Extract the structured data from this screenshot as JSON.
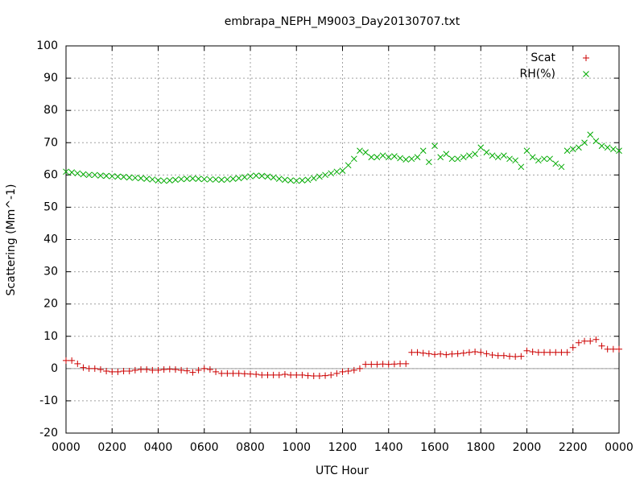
{
  "chart_data": {
    "type": "scatter",
    "title": "embrapa_NEPH_M9003_Day20130707.txt",
    "x_label": "UTC Hour",
    "y_label": "Scattering (Mm^-1)",
    "xlim": [
      0,
      24
    ],
    "ylim": [
      -20,
      100
    ],
    "xticks": [
      {
        "value": 0,
        "label": "0000"
      },
      {
        "value": 2,
        "label": "0200"
      },
      {
        "value": 4,
        "label": "0400"
      },
      {
        "value": 6,
        "label": "0600"
      },
      {
        "value": 8,
        "label": "0800"
      },
      {
        "value": 10,
        "label": "1000"
      },
      {
        "value": 12,
        "label": "1200"
      },
      {
        "value": 14,
        "label": "1400"
      },
      {
        "value": 16,
        "label": "1600"
      },
      {
        "value": 18,
        "label": "1800"
      },
      {
        "value": 20,
        "label": "2000"
      },
      {
        "value": 22,
        "label": "2200"
      },
      {
        "value": 24,
        "label": "0000"
      }
    ],
    "yticks": [
      -20,
      -10,
      0,
      10,
      20,
      30,
      40,
      50,
      60,
      70,
      80,
      90,
      100
    ],
    "grid": true,
    "legend": "top-right",
    "x": [
      0,
      0.25,
      0.5,
      0.75,
      1,
      1.25,
      1.5,
      1.75,
      2,
      2.25,
      2.5,
      2.75,
      3,
      3.25,
      3.5,
      3.75,
      4,
      4.25,
      4.5,
      4.75,
      5,
      5.25,
      5.5,
      5.75,
      6,
      6.25,
      6.5,
      6.75,
      7,
      7.25,
      7.5,
      7.75,
      8,
      8.25,
      8.5,
      8.75,
      9,
      9.25,
      9.5,
      9.75,
      10,
      10.25,
      10.5,
      10.75,
      11,
      11.25,
      11.5,
      11.75,
      12,
      12.25,
      12.5,
      12.75,
      13,
      13.25,
      13.5,
      13.75,
      14,
      14.25,
      14.5,
      14.75,
      15,
      15.25,
      15.5,
      15.75,
      16,
      16.25,
      16.5,
      16.75,
      17,
      17.25,
      17.5,
      17.75,
      18,
      18.25,
      18.5,
      18.75,
      19,
      19.25,
      19.5,
      19.75,
      20,
      20.25,
      20.5,
      20.75,
      21,
      21.25,
      21.5,
      21.75,
      22,
      22.25,
      22.5,
      22.75,
      23,
      23.25,
      23.5,
      23.75,
      24
    ],
    "series": [
      {
        "name": "Scat",
        "color": "#cc0000",
        "marker": "plus",
        "values": [
          2.5,
          2.5,
          1.5,
          0.3,
          0,
          0,
          -0.3,
          -0.8,
          -1,
          -1,
          -0.8,
          -0.8,
          -0.5,
          -0.3,
          -0.3,
          -0.5,
          -0.5,
          -0.3,
          -0.2,
          -0.3,
          -0.5,
          -0.7,
          -1.2,
          -0.5,
          0,
          -0.3,
          -1,
          -1.5,
          -1.5,
          -1.5,
          -1.5,
          -1.6,
          -1.7,
          -1.8,
          -2,
          -2,
          -2,
          -2,
          -1.8,
          -2,
          -2,
          -2,
          -2.2,
          -2.3,
          -2.3,
          -2.2,
          -2,
          -1.5,
          -1,
          -0.8,
          -0.5,
          0,
          1.3,
          1.3,
          1.3,
          1.4,
          1.3,
          1.4,
          1.5,
          1.5,
          5,
          5,
          4.8,
          4.6,
          4.4,
          4.5,
          4.3,
          4.5,
          4.6,
          4.8,
          5,
          5.2,
          5,
          4.6,
          4.2,
          4,
          4,
          3.8,
          3.7,
          3.8,
          5.5,
          5.2,
          5,
          5,
          5,
          5,
          5,
          5,
          6.5,
          8,
          8.5,
          8.5,
          9,
          7,
          6,
          6,
          6
        ]
      },
      {
        "name": "RH(%)",
        "color": "#00aa00",
        "marker": "cross",
        "values": [
          61,
          60.8,
          60.5,
          60.2,
          60,
          60,
          59.8,
          59.7,
          59.6,
          59.5,
          59.4,
          59.2,
          59.1,
          59,
          58.8,
          58.6,
          58.3,
          58.2,
          58.3,
          58.5,
          58.7,
          58.8,
          58.9,
          58.8,
          58.7,
          58.6,
          58.6,
          58.5,
          58.6,
          58.8,
          59,
          59.3,
          59.6,
          59.8,
          59.7,
          59.5,
          59.2,
          58.8,
          58.5,
          58.3,
          58.2,
          58.3,
          58.5,
          59,
          59.5,
          60,
          60.5,
          61,
          61.3,
          63,
          65,
          67.5,
          67,
          65.5,
          65.5,
          66,
          65.5,
          65.8,
          65.2,
          64.8,
          65,
          65.5,
          67.5,
          64,
          69,
          65.5,
          66.5,
          65,
          65,
          65.5,
          66,
          66.5,
          68.5,
          67,
          66,
          65.5,
          66,
          65,
          64.5,
          62.5,
          67.5,
          65.5,
          64.5,
          65,
          65,
          63.5,
          62.5,
          67.5,
          68,
          68.5,
          70,
          72.5,
          70.5,
          69,
          68.5,
          68,
          67.5
        ]
      }
    ]
  }
}
